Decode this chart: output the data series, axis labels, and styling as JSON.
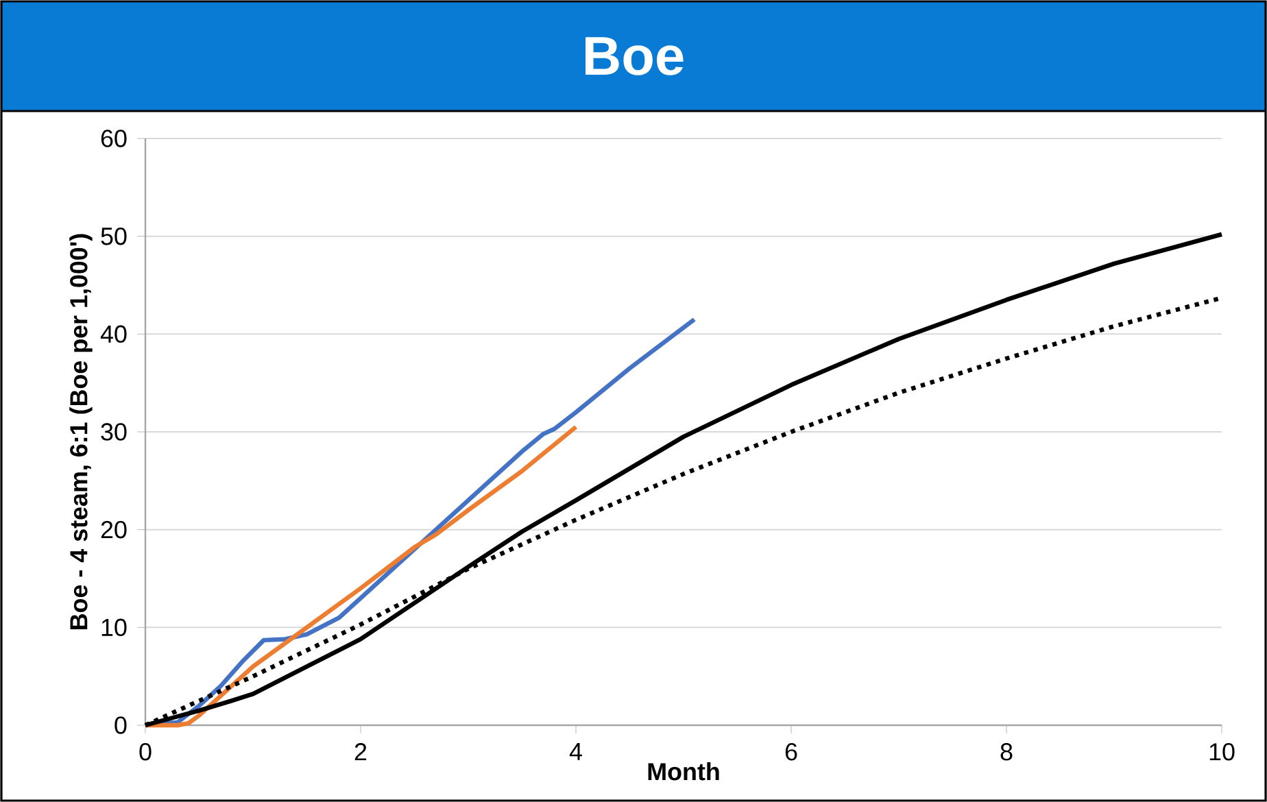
{
  "chart_data": {
    "type": "line",
    "title": "Boe",
    "xlabel": "Month",
    "ylabel": "Boe - 4 steam, 6:1 (Boe per 1,000')",
    "xlim": [
      0,
      10
    ],
    "ylim": [
      0,
      60
    ],
    "xticks": [
      0,
      2,
      4,
      6,
      8,
      10
    ],
    "yticks": [
      0,
      10,
      20,
      30,
      40,
      50,
      60
    ],
    "grid": "y",
    "series": [
      {
        "color": "#4472c4",
        "line_style": "solid",
        "x": [
          0,
          0.3,
          0.5,
          0.7,
          0.9,
          1.1,
          1.3,
          1.5,
          1.8,
          2,
          2.5,
          3,
          3.5,
          3.7,
          3.8,
          4,
          4.5,
          5.1
        ],
        "values": [
          0,
          0.3,
          2,
          4,
          6.5,
          8.7,
          8.8,
          9.3,
          11,
          13,
          18,
          23,
          28,
          29.8,
          30.3,
          32,
          36.5,
          41.5
        ]
      },
      {
        "color": "#ed7d31",
        "line_style": "solid",
        "x": [
          0,
          0.3,
          0.4,
          0.5,
          0.8,
          1,
          1.5,
          2,
          2.5,
          2.7,
          3,
          3.5,
          4
        ],
        "values": [
          0,
          0,
          0.2,
          1,
          4,
          6,
          10,
          14,
          18.2,
          19.5,
          22,
          26,
          30.5
        ]
      },
      {
        "color": "#000000",
        "line_style": "solid",
        "x": [
          0,
          0.5,
          0.8,
          1,
          1.5,
          2,
          2.5,
          3,
          3.5,
          4,
          5,
          6,
          7,
          8,
          9,
          10
        ],
        "values": [
          0,
          1.5,
          2.5,
          3.2,
          6,
          8.8,
          12.5,
          16.2,
          19.8,
          23,
          29.5,
          34.8,
          39.5,
          43.5,
          47.2,
          50.2
        ]
      },
      {
        "color": "#000000",
        "line_style": "dotted",
        "x": [
          0,
          0.5,
          1,
          2,
          3,
          4,
          5,
          6,
          7,
          8,
          9,
          10
        ],
        "values": [
          0,
          2.5,
          5,
          10.3,
          16,
          21,
          25.7,
          30,
          34,
          37.5,
          40.8,
          43.7
        ]
      }
    ]
  }
}
